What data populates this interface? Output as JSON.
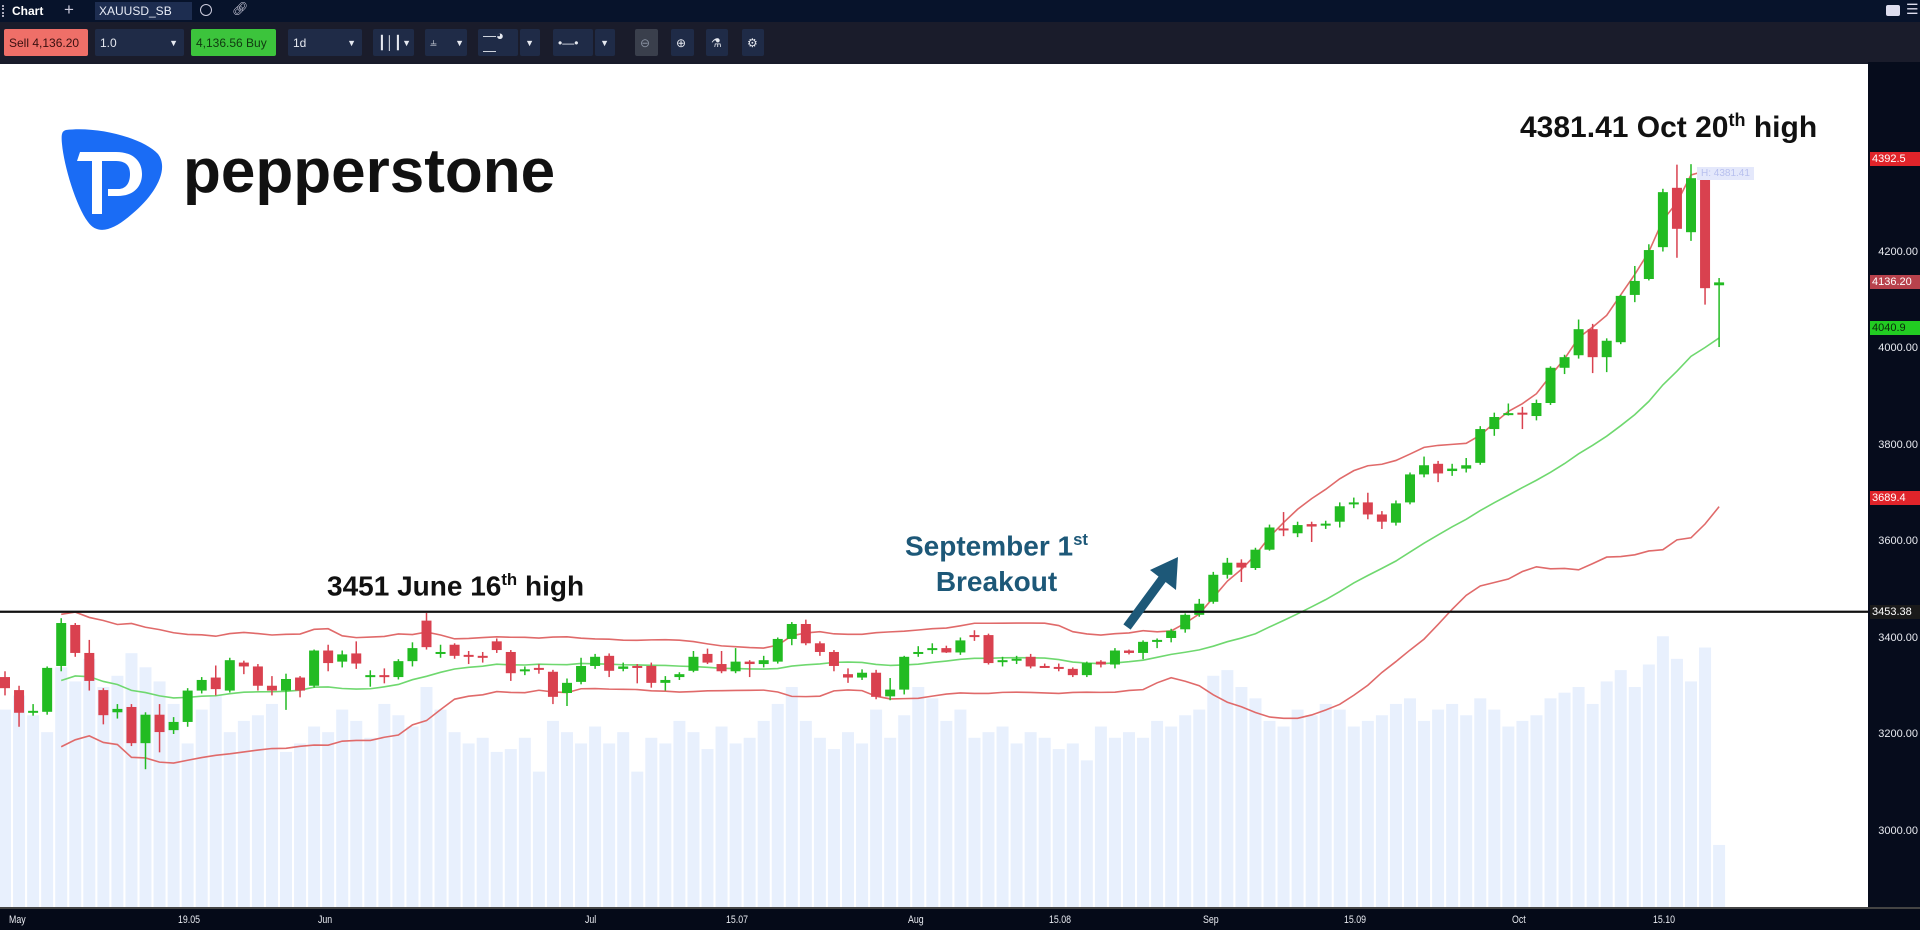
{
  "topbar": {
    "tab_label": "Chart",
    "add_tab": "+",
    "symbol": "XAUUSD_SB"
  },
  "toolbar": {
    "sell_label": "Sell 4,136.20",
    "quantity": "1.0",
    "buy_label": "4,136.56 Buy",
    "timeframe": "1d",
    "icons": [
      "candles-icon",
      "indicators-icon",
      "clock-icon",
      "line-style-icon",
      "zoom-out-icon",
      "zoom-in-icon",
      "flask-icon",
      "gear-icon"
    ]
  },
  "logo": {
    "text": "pepperstone",
    "brand_color": "#1a6cf5"
  },
  "annotations": {
    "june_high_prefix": "3451 June 16",
    "june_high_sup": "th",
    "june_high_suffix": " high",
    "breakout_line1": "September 1",
    "breakout_sup": "st",
    "breakout_line2": "Breakout",
    "oct_high_prefix": "4381.41 Oct 20",
    "oct_high_sup": "th",
    "oct_high_suffix": " high",
    "high_marker": "H: 4381.41"
  },
  "price_badges": {
    "upper_band": "4392.5",
    "last_price": "4136.20",
    "middle_band": "4040.9",
    "lower_band": "3689.4",
    "hline": "3453.38"
  },
  "chart_data": {
    "type": "candlestick",
    "symbol": "XAUUSD_SB",
    "timeframe": "1d",
    "ylim": [
      2860,
      4460
    ],
    "y_ticks": [
      "4200.00",
      "4000.00",
      "3800.00",
      "3600.00",
      "3400.00",
      "3200.00",
      "3000.00"
    ],
    "y_tick_values": [
      4200,
      4000,
      3800,
      3600,
      3400,
      3200,
      3000
    ],
    "x_ticks": [
      {
        "label": "May",
        "index": 0
      },
      {
        "label": "19.05",
        "index": 12
      },
      {
        "label": "Jun",
        "index": 22
      },
      {
        "label": "Jul",
        "index": 41
      },
      {
        "label": "15.07",
        "index": 51
      },
      {
        "label": "Aug",
        "index": 64
      },
      {
        "label": "15.08",
        "index": 74
      },
      {
        "label": "Sep",
        "index": 85
      },
      {
        "label": "15.09",
        "index": 95
      },
      {
        "label": "Oct",
        "index": 107
      },
      {
        "label": "15.10",
        "index": 117
      }
    ],
    "horizontal_line": 3453.38,
    "bollinger": {
      "period": 20,
      "stddev": 2,
      "upper_color": "#e06a6a",
      "middle_color": "#6fd86f"
    },
    "colors": {
      "up": "#22bb22",
      "down": "#d9414f",
      "volume": "#e8f0fd"
    },
    "ohlc": [
      [
        3318,
        3330,
        3280,
        3295
      ],
      [
        3291,
        3300,
        3215,
        3244
      ],
      [
        3246,
        3262,
        3238,
        3248
      ],
      [
        3246,
        3340,
        3240,
        3337
      ],
      [
        3341,
        3440,
        3330,
        3430
      ],
      [
        3426,
        3430,
        3360,
        3368
      ],
      [
        3368,
        3395,
        3290,
        3310
      ],
      [
        3291,
        3295,
        3220,
        3239
      ],
      [
        3245,
        3262,
        3232,
        3252
      ],
      [
        3256,
        3262,
        3175,
        3181
      ],
      [
        3181,
        3245,
        3127,
        3240
      ],
      [
        3240,
        3262,
        3162,
        3204
      ],
      [
        3208,
        3235,
        3200,
        3225
      ],
      [
        3225,
        3295,
        3215,
        3290
      ],
      [
        3290,
        3318,
        3284,
        3312
      ],
      [
        3317,
        3342,
        3280,
        3293
      ],
      [
        3290,
        3358,
        3286,
        3353
      ],
      [
        3348,
        3352,
        3324,
        3340
      ],
      [
        3340,
        3345,
        3290,
        3300
      ],
      [
        3300,
        3320,
        3280,
        3290
      ],
      [
        3290,
        3325,
        3250,
        3314
      ],
      [
        3317,
        3320,
        3276,
        3290
      ],
      [
        3300,
        3375,
        3296,
        3373
      ],
      [
        3373,
        3385,
        3330,
        3347
      ],
      [
        3350,
        3373,
        3338,
        3365
      ],
      [
        3367,
        3392,
        3335,
        3346
      ],
      [
        3318,
        3332,
        3298,
        3322
      ],
      [
        3322,
        3336,
        3305,
        3318
      ],
      [
        3318,
        3355,
        3313,
        3351
      ],
      [
        3351,
        3390,
        3340,
        3378
      ],
      [
        3435,
        3451,
        3375,
        3380
      ],
      [
        3366,
        3385,
        3358,
        3370
      ],
      [
        3385,
        3388,
        3356,
        3362
      ],
      [
        3364,
        3372,
        3345,
        3360
      ],
      [
        3362,
        3370,
        3348,
        3360
      ],
      [
        3392,
        3398,
        3368,
        3374
      ],
      [
        3370,
        3374,
        3310,
        3326
      ],
      [
        3330,
        3340,
        3322,
        3334
      ],
      [
        3337,
        3345,
        3325,
        3334
      ],
      [
        3329,
        3333,
        3262,
        3277
      ],
      [
        3285,
        3315,
        3258,
        3306
      ],
      [
        3308,
        3358,
        3303,
        3341
      ],
      [
        3341,
        3366,
        3335,
        3360
      ],
      [
        3362,
        3367,
        3318,
        3331
      ],
      [
        3335,
        3348,
        3330,
        3340
      ],
      [
        3341,
        3345,
        3305,
        3339
      ],
      [
        3341,
        3348,
        3296,
        3306
      ],
      [
        3306,
        3320,
        3290,
        3312
      ],
      [
        3318,
        3328,
        3312,
        3324
      ],
      [
        3331,
        3372,
        3328,
        3360
      ],
      [
        3366,
        3377,
        3345,
        3348
      ],
      [
        3345,
        3372,
        3326,
        3330
      ],
      [
        3330,
        3378,
        3326,
        3350
      ],
      [
        3350,
        3353,
        3318,
        3345
      ],
      [
        3345,
        3362,
        3338,
        3353
      ],
      [
        3350,
        3400,
        3346,
        3397
      ],
      [
        3397,
        3432,
        3384,
        3428
      ],
      [
        3428,
        3437,
        3384,
        3388
      ],
      [
        3388,
        3392,
        3362,
        3370
      ],
      [
        3370,
        3374,
        3330,
        3341
      ],
      [
        3324,
        3336,
        3306,
        3317
      ],
      [
        3317,
        3334,
        3312,
        3327
      ],
      [
        3327,
        3333,
        3272,
        3277
      ],
      [
        3278,
        3316,
        3270,
        3292
      ],
      [
        3292,
        3362,
        3282,
        3360
      ],
      [
        3366,
        3382,
        3360,
        3370
      ],
      [
        3376,
        3388,
        3366,
        3378
      ],
      [
        3378,
        3383,
        3368,
        3369
      ],
      [
        3369,
        3400,
        3364,
        3394
      ],
      [
        3405,
        3415,
        3393,
        3403
      ],
      [
        3405,
        3408,
        3344,
        3347
      ],
      [
        3350,
        3360,
        3340,
        3353
      ],
      [
        3353,
        3362,
        3345,
        3356
      ],
      [
        3360,
        3366,
        3336,
        3340
      ],
      [
        3341,
        3346,
        3337,
        3340
      ],
      [
        3339,
        3346,
        3330,
        3337
      ],
      [
        3335,
        3338,
        3318,
        3322
      ],
      [
        3322,
        3350,
        3318,
        3347
      ],
      [
        3350,
        3353,
        3338,
        3344
      ],
      [
        3344,
        3378,
        3336,
        3373
      ],
      [
        3373,
        3375,
        3365,
        3368
      ],
      [
        3368,
        3394,
        3355,
        3391
      ],
      [
        3392,
        3398,
        3378,
        3395
      ],
      [
        3399,
        3418,
        3390,
        3414
      ],
      [
        3417,
        3450,
        3410,
        3447
      ],
      [
        3447,
        3480,
        3443,
        3470
      ],
      [
        3474,
        3536,
        3470,
        3530
      ],
      [
        3530,
        3565,
        3522,
        3555
      ],
      [
        3555,
        3562,
        3515,
        3545
      ],
      [
        3544,
        3586,
        3540,
        3582
      ],
      [
        3582,
        3634,
        3580,
        3628
      ],
      [
        3626,
        3660,
        3610,
        3622
      ],
      [
        3616,
        3640,
        3608,
        3633
      ],
      [
        3635,
        3640,
        3598,
        3630
      ],
      [
        3632,
        3642,
        3625,
        3636
      ],
      [
        3640,
        3680,
        3628,
        3672
      ],
      [
        3676,
        3690,
        3668,
        3680
      ],
      [
        3680,
        3700,
        3645,
        3655
      ],
      [
        3655,
        3662,
        3625,
        3640
      ],
      [
        3638,
        3684,
        3632,
        3678
      ],
      [
        3680,
        3742,
        3676,
        3738
      ],
      [
        3738,
        3775,
        3732,
        3757
      ],
      [
        3760,
        3766,
        3722,
        3740
      ],
      [
        3745,
        3760,
        3735,
        3750
      ],
      [
        3750,
        3772,
        3742,
        3757
      ],
      [
        3762,
        3838,
        3758,
        3832
      ],
      [
        3832,
        3866,
        3818,
        3857
      ],
      [
        3862,
        3885,
        3860,
        3865
      ],
      [
        3866,
        3878,
        3832,
        3862
      ],
      [
        3859,
        3893,
        3850,
        3886
      ],
      [
        3886,
        3962,
        3882,
        3959
      ],
      [
        3959,
        3986,
        3946,
        3981
      ],
      [
        3985,
        4059,
        3978,
        4039
      ],
      [
        4039,
        4050,
        3948,
        3981
      ],
      [
        3981,
        4020,
        3950,
        4015
      ],
      [
        4012,
        4110,
        4008,
        4108
      ],
      [
        4110,
        4170,
        4095,
        4139
      ],
      [
        4143,
        4215,
        4140,
        4203
      ],
      [
        4209,
        4330,
        4200,
        4323
      ],
      [
        4332,
        4380,
        4187,
        4247
      ],
      [
        4240,
        4381,
        4222,
        4352
      ],
      [
        4352,
        4358,
        4090,
        4124
      ],
      [
        4130,
        4145,
        4002,
        4136
      ]
    ],
    "volume_relative": [
      70,
      75,
      68,
      62,
      85,
      80,
      88,
      78,
      82,
      90,
      85,
      80,
      72,
      58,
      70,
      75,
      62,
      66,
      68,
      72,
      55,
      58,
      64,
      62,
      70,
      66,
      60,
      72,
      68,
      64,
      78,
      70,
      62,
      58,
      60,
      55,
      56,
      60,
      48,
      66,
      62,
      58,
      64,
      58,
      62,
      48,
      60,
      58,
      66,
      62,
      56,
      64,
      58,
      60,
      66,
      72,
      78,
      66,
      60,
      56,
      62,
      58,
      70,
      60,
      68,
      78,
      74,
      66,
      70,
      60,
      62,
      64,
      58,
      62,
      60,
      56,
      58,
      52,
      64,
      60,
      62,
      60,
      66,
      64,
      68,
      70,
      82,
      84,
      78,
      74,
      66,
      64,
      70,
      68,
      72,
      70,
      64,
      66,
      68,
      72,
      74,
      66,
      70,
      72,
      68,
      74,
      70,
      64,
      66,
      68,
      74,
      76,
      78,
      72,
      80,
      84,
      78,
      86,
      96,
      88,
      80,
      92,
      22
    ]
  }
}
